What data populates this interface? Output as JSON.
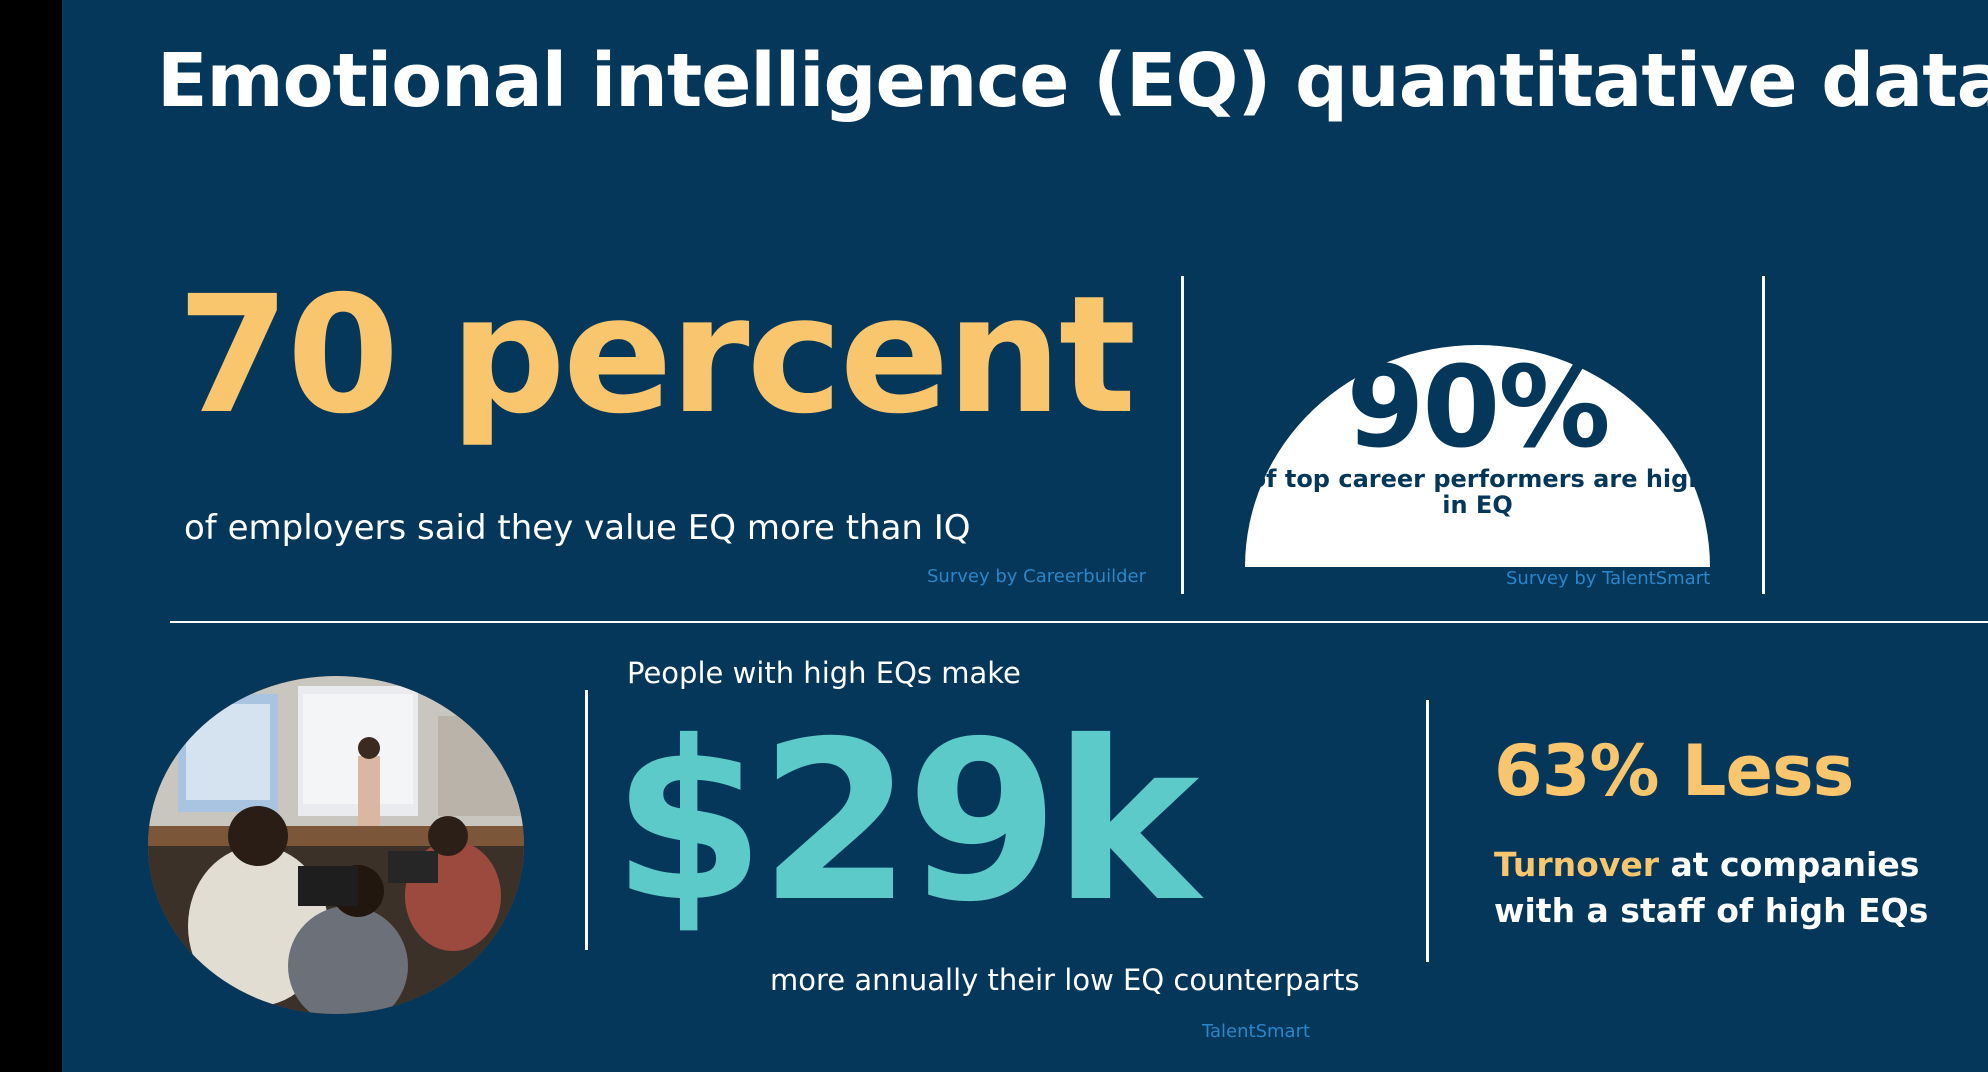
{
  "title": "Emotional intelligence (EQ) quantitative data.",
  "colors": {
    "background": "#05375a",
    "accent_yellow": "#f9c66d",
    "accent_teal": "#5bcac8",
    "source_blue": "#2a86c8"
  },
  "stat_70": {
    "value": "70 percent",
    "description": "of employers said they value EQ more than IQ",
    "source": "Survey by Careerbuilder"
  },
  "stat_90": {
    "value": "90%",
    "description": "of top career performers are high in EQ",
    "source": "Survey by TalentSmart"
  },
  "stat_29k": {
    "intro": "People with high EQs make",
    "value": "$29k",
    "description": "more annually their low EQ counterparts",
    "source": "TalentSmart"
  },
  "stat_63": {
    "value": "63% Less",
    "highlight": "Turnover",
    "description": "at companies with a staff of high EQs"
  }
}
